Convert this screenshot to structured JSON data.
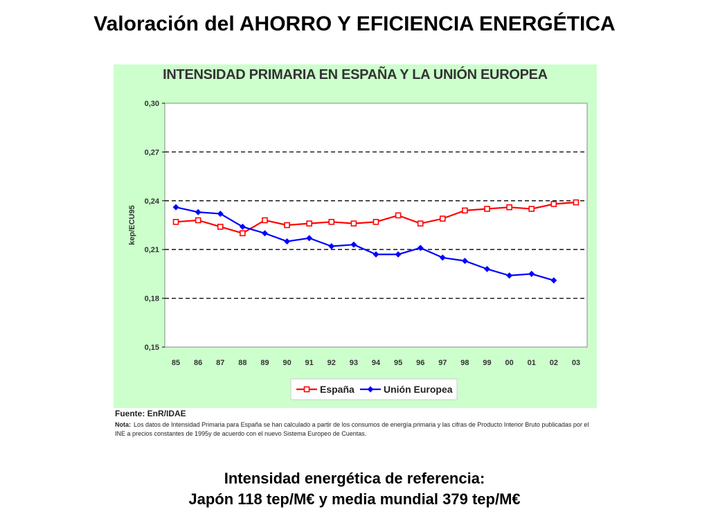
{
  "slide_title": "Valoración del AHORRO Y EFICIENCIA ENERGÉTICA",
  "source": "Fuente: EnR/IDAE",
  "note_label": "Nota:",
  "note_text": "Los datos de Intensidad Primaria para España se han calculado a partir de los consumos de energía primaria y las cifras de Producto Interior Bruto publicadas por el INE a precios constantes de 1995y de acuerdo con el nuevo Sistema Europeo de Cuentas.",
  "footer_line1": "Intensidad energética de referencia:",
  "footer_line2": "Japón 118 tep/M€ y media mundial 379 tep/M€",
  "colors": {
    "spain": "#ff0000",
    "eu": "#0000ff",
    "background": "#ccffcc",
    "plot": "#ffffff"
  },
  "chart_data": {
    "type": "line",
    "title": "INTENSIDAD PRIMARIA EN ESPAÑA Y LA UNIÓN EUROPEA",
    "ylabel": "kep/ECU95",
    "xlabel": "",
    "categories": [
      "85",
      "86",
      "87",
      "88",
      "89",
      "90",
      "91",
      "92",
      "93",
      "94",
      "95",
      "96",
      "97",
      "98",
      "99",
      "00",
      "01",
      "02",
      "03"
    ],
    "yticks": [
      "0,30",
      "0,27",
      "0,24",
      "0,21",
      "0,18",
      "0,15"
    ],
    "ylim": [
      0.15,
      0.3
    ],
    "grid": "dashed horizontal at 0.18, 0.21, 0.24, 0.27",
    "legend_position": "bottom",
    "series": [
      {
        "name": "España",
        "marker": "square",
        "values": [
          0.227,
          0.228,
          0.224,
          0.22,
          0.228,
          0.225,
          0.226,
          0.227,
          0.226,
          0.227,
          0.231,
          0.226,
          0.229,
          0.234,
          0.235,
          0.236,
          0.235,
          0.238,
          0.239
        ]
      },
      {
        "name": "Unión Europea",
        "marker": "diamond",
        "values": [
          0.236,
          0.233,
          0.232,
          0.224,
          0.22,
          0.215,
          0.217,
          0.212,
          0.213,
          0.207,
          0.207,
          0.211,
          0.205,
          0.203,
          0.198,
          0.194,
          0.195,
          0.191,
          null
        ]
      }
    ]
  }
}
